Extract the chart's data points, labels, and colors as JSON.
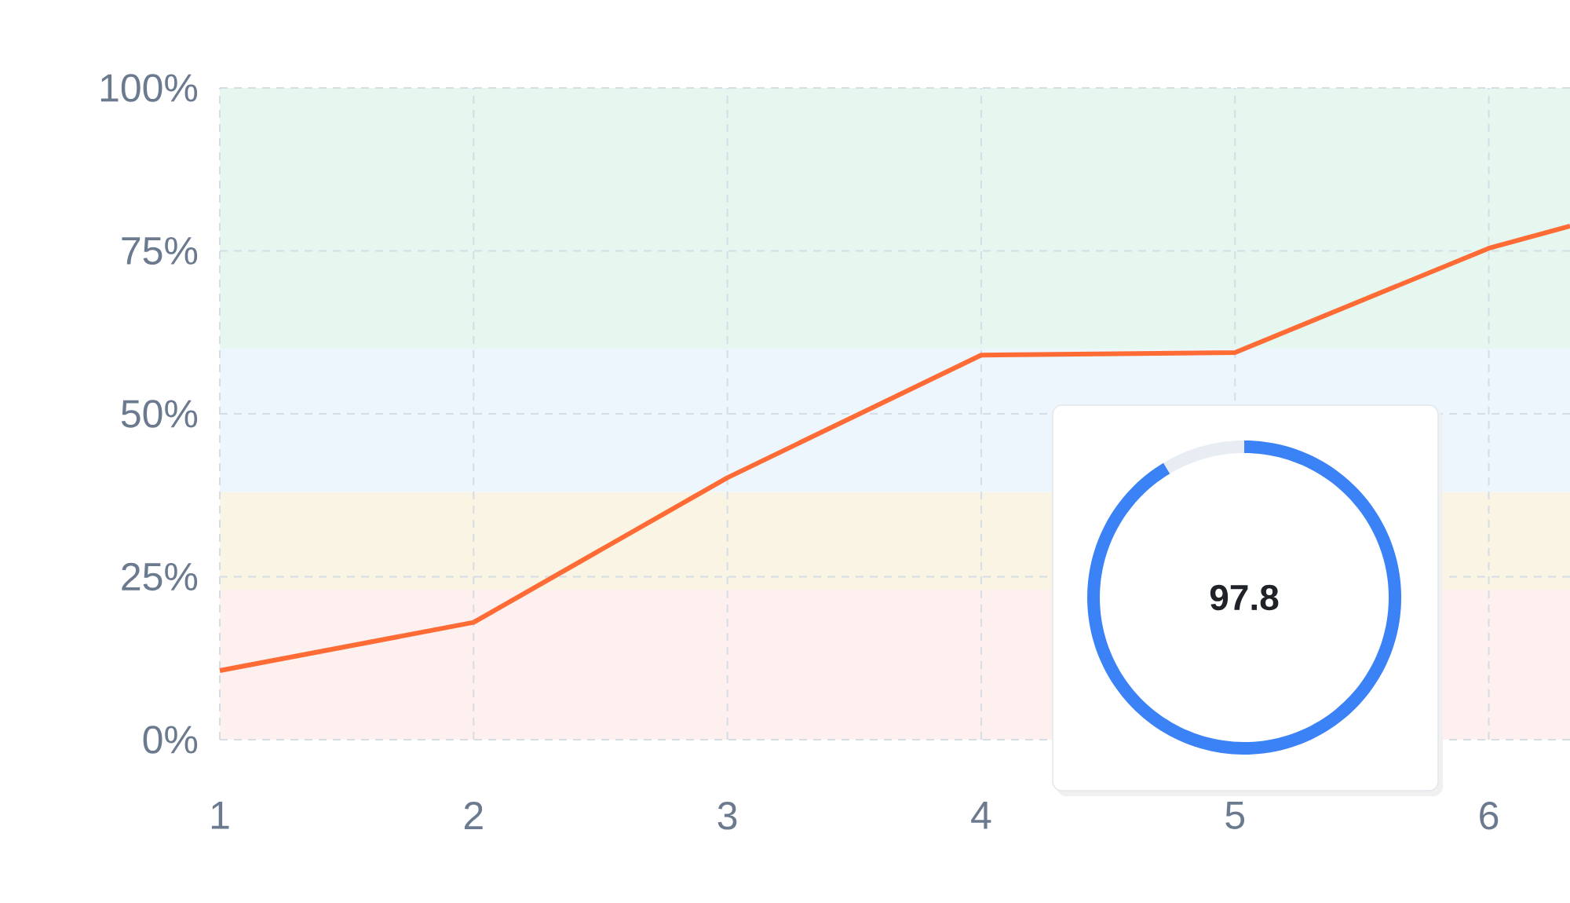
{
  "chart_data": [
    {
      "type": "line",
      "x": [
        1,
        2,
        3,
        4,
        5,
        6,
        6.32
      ],
      "values": [
        10.6,
        18.0,
        40.2,
        59.0,
        59.4,
        75.4,
        78.8
      ],
      "color": "#ff6b35",
      "marker": "none",
      "grid": true,
      "xlim": [
        1,
        6.32
      ],
      "xticks": [
        1,
        2,
        3,
        4,
        5,
        6
      ],
      "ylim": [
        0,
        100
      ],
      "yticks": [
        {
          "value": 0,
          "label": "0%"
        },
        {
          "value": 25,
          "label": "25%"
        },
        {
          "value": 50,
          "label": "50%"
        },
        {
          "value": 75,
          "label": "75%"
        },
        {
          "value": 100,
          "label": "100%"
        }
      ],
      "bands": [
        {
          "axis": "y",
          "from": 0,
          "to": 23,
          "color": "#fdf0ef"
        },
        {
          "axis": "y",
          "from": 23,
          "to": 38,
          "color": "#faf4e4"
        },
        {
          "axis": "y",
          "from": 38,
          "to": 60,
          "color": "#edf5fd"
        },
        {
          "axis": "y",
          "from": 60,
          "to": 100,
          "color": "#e6f7ef"
        }
      ]
    },
    {
      "type": "donut",
      "categories": [
        null,
        null
      ],
      "values": [
        91.4,
        8.6
      ],
      "colors": [
        "#3b82f6",
        "#e8edf3"
      ],
      "annotations": [
        "97.8"
      ]
    }
  ]
}
